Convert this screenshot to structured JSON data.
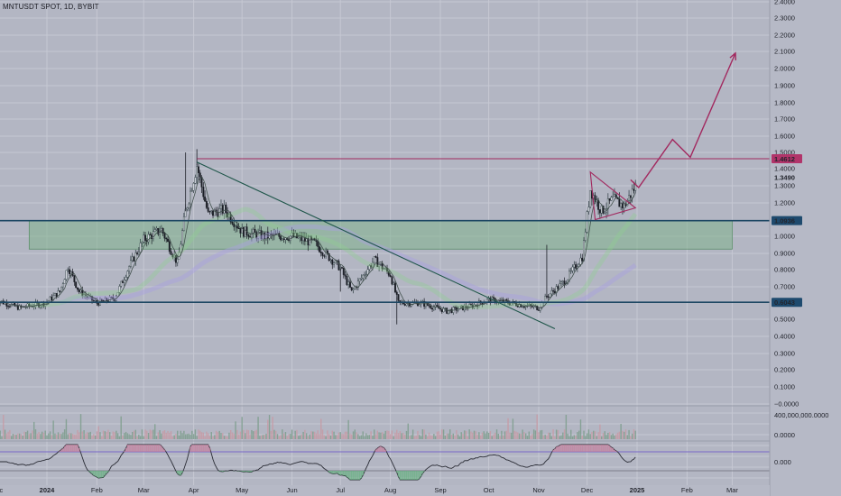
{
  "symbol_label": "MNTUSDT SPOT, 1D, BYBIT",
  "chart_data": {
    "type": "candlestick",
    "title": "",
    "y_scale": "log",
    "ylim": [
      0.0,
      2.4
    ],
    "y_ticks": [
      {
        "label": "2.4000",
        "value": 2.4
      },
      {
        "label": "2.3000",
        "value": 2.3
      },
      {
        "label": "2.2000",
        "value": 2.2
      },
      {
        "label": "2.1000",
        "value": 2.1
      },
      {
        "label": "2.0000",
        "value": 2.0
      },
      {
        "label": "1.9000",
        "value": 1.9
      },
      {
        "label": "1.8000",
        "value": 1.8
      },
      {
        "label": "1.7000",
        "value": 1.7
      },
      {
        "label": "1.6000",
        "value": 1.6
      },
      {
        "label": "1.5000",
        "value": 1.5
      },
      {
        "label": "1.4000",
        "value": 1.4
      },
      {
        "label": "1.3000",
        "value": 1.3
      },
      {
        "label": "1.2000",
        "value": 1.2
      },
      {
        "label": "1.0000",
        "value": 1.0
      },
      {
        "label": "0.9000",
        "value": 0.9
      },
      {
        "label": "0.8000",
        "value": 0.8
      },
      {
        "label": "0.7000",
        "value": 0.7
      },
      {
        "label": "0.5000",
        "value": 0.5
      },
      {
        "label": "0.4000",
        "value": 0.4
      },
      {
        "label": "0.3000",
        "value": 0.3
      },
      {
        "label": "0.2000",
        "value": 0.2
      },
      {
        "label": "0.1000",
        "value": 0.1
      },
      {
        "label": "−0.0000",
        "value": 0.0
      }
    ],
    "x_ticks": [
      "Dec",
      "2024",
      "Feb",
      "Mar",
      "Apr",
      "May",
      "Jun",
      "Jul",
      "Aug",
      "Sep",
      "Oct",
      "Nov",
      "Dec",
      "2025",
      "Feb",
      "Mar"
    ],
    "x_ticks_bold": [
      "2024",
      "2025"
    ],
    "price_labels": [
      {
        "label": "1.4612",
        "value": 1.4612,
        "color": "#b1346a"
      },
      {
        "label": "1.3490",
        "value": 1.349,
        "color": "none"
      },
      {
        "label": "1.0936",
        "value": 1.0936,
        "color": "#1e4a6e"
      },
      {
        "label": "0.6043",
        "value": 0.6043,
        "color": "#1e4a6e"
      }
    ],
    "levels": [
      {
        "name": "resistance",
        "value": 1.4612,
        "color": "#a2295f"
      },
      {
        "name": "support-high",
        "value": 1.0936,
        "color": "#1d4763"
      },
      {
        "name": "support-low",
        "value": 0.6043,
        "color": "#1d4763"
      }
    ],
    "demand_zone": {
      "from_value": 0.925,
      "to_value": 1.0936,
      "color": "#7fb28c"
    },
    "trendline": {
      "start": {
        "date": "2024-04-03",
        "value": 1.44
      },
      "end": {
        "date": "2024-11-11",
        "value": 0.445
      },
      "color": "#1e5549"
    },
    "triangle": [
      {
        "date": "2024-12-03",
        "value": 1.38
      },
      {
        "date": "2024-12-31",
        "value": 1.17
      },
      {
        "date": "2024-12-06",
        "value": 1.1
      }
    ],
    "projection": [
      {
        "date": "2024-12-28",
        "value": 1.335
      },
      {
        "date": "2025-01-02",
        "value": 1.29
      },
      {
        "date": "2025-01-23",
        "value": 1.58
      },
      {
        "date": "2025-02-03",
        "value": 1.47
      },
      {
        "date": "2025-03-03",
        "value": 2.09
      }
    ],
    "candles": [
      {
        "date": "2023-11-30",
        "close": 0.62
      },
      {
        "date": "2023-12-15",
        "close": 0.57
      },
      {
        "date": "2023-12-31",
        "close": 0.6
      },
      {
        "date": "2024-01-09",
        "close": 0.67
      },
      {
        "date": "2024-01-14",
        "close": 0.82
      },
      {
        "date": "2024-01-21",
        "close": 0.67
      },
      {
        "date": "2024-02-01",
        "close": 0.6
      },
      {
        "date": "2024-02-12",
        "close": 0.63
      },
      {
        "date": "2024-02-21",
        "close": 0.82
      },
      {
        "date": "2024-03-01",
        "close": 0.98
      },
      {
        "date": "2024-03-12",
        "close": 1.04
      },
      {
        "date": "2024-03-22",
        "close": 0.84
      },
      {
        "date": "2024-03-27",
        "close": 1.15
      },
      {
        "date": "2024-04-03",
        "close": 1.42
      },
      {
        "date": "2024-04-10",
        "close": 1.13
      },
      {
        "date": "2024-04-20",
        "close": 1.16
      },
      {
        "date": "2024-05-01",
        "close": 1.03
      },
      {
        "date": "2024-05-15",
        "close": 1.0
      },
      {
        "date": "2024-06-01",
        "close": 1.0
      },
      {
        "date": "2024-06-15",
        "close": 0.96
      },
      {
        "date": "2024-07-01",
        "close": 0.81
      },
      {
        "date": "2024-07-08",
        "close": 0.67
      },
      {
        "date": "2024-07-22",
        "close": 0.86
      },
      {
        "date": "2024-08-01",
        "close": 0.77
      },
      {
        "date": "2024-08-06",
        "close": 0.6
      },
      {
        "date": "2024-08-20",
        "close": 0.6
      },
      {
        "date": "2024-09-05",
        "close": 0.55
      },
      {
        "date": "2024-09-20",
        "close": 0.58
      },
      {
        "date": "2024-10-01",
        "close": 0.62
      },
      {
        "date": "2024-10-15",
        "close": 0.6
      },
      {
        "date": "2024-11-01",
        "close": 0.57
      },
      {
        "date": "2024-11-06",
        "close": 0.64
      },
      {
        "date": "2024-11-18",
        "close": 0.74
      },
      {
        "date": "2024-11-28",
        "close": 0.88
      },
      {
        "date": "2024-12-03",
        "close": 1.28
      },
      {
        "date": "2024-12-10",
        "close": 1.15
      },
      {
        "date": "2024-12-17",
        "close": 1.22
      },
      {
        "date": "2024-12-24",
        "close": 1.18
      },
      {
        "date": "2024-12-31",
        "close": 1.3
      }
    ],
    "volume_ticks": [
      "400,000,000.0000",
      "0.0000"
    ],
    "oscillator_ticks": [
      "0.000"
    ]
  },
  "colors": {
    "background": "#b3b6c3",
    "grid": "#c6c8d3",
    "candle_up": "#2c3b40",
    "candle_down": "#1b1e26",
    "ma_fast": "#42514d",
    "ma_green": "#8fd08e",
    "ma_purple": "#a89fe0",
    "volume_up": "#7d9d8c",
    "volume_down": "#c79aa5"
  }
}
